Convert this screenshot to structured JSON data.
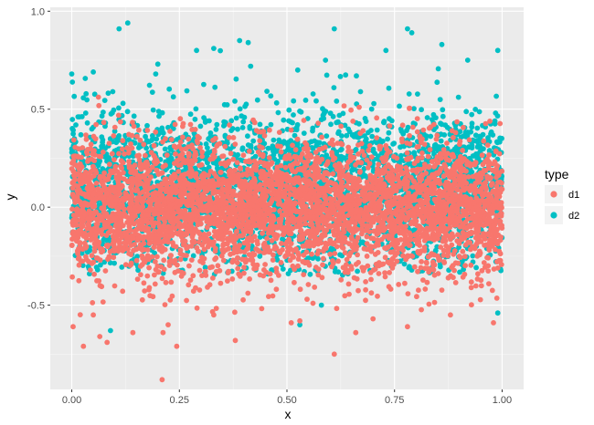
{
  "chart_data": {
    "type": "scatter",
    "title": "",
    "xlabel": "x",
    "ylabel": "y",
    "xlim": [
      -0.05,
      1.05
    ],
    "ylim": [
      -0.93,
      1.02
    ],
    "x_ticks": [
      0.0,
      0.25,
      0.5,
      0.75,
      1.0
    ],
    "x_tick_labels": [
      "0.00",
      "0.25",
      "0.50",
      "0.75",
      "1.00"
    ],
    "y_ticks": [
      -0.5,
      0.0,
      0.5,
      1.0
    ],
    "y_tick_labels": [
      "-0.5",
      "0.0",
      "0.5",
      "1.0"
    ],
    "grid": true,
    "background": "#ebebeb",
    "legend": {
      "title": "type",
      "placement": "right",
      "entries": [
        {
          "label": "d1",
          "color": "#F8766D"
        },
        {
          "label": "d2",
          "color": "#00BFC4"
        }
      ]
    },
    "series": [
      {
        "name": "d1",
        "color": "#F8766D",
        "x_range": [
          0.0,
          1.0
        ],
        "y_center": 0.0,
        "y_typical_range": [
          -0.3,
          0.4
        ],
        "points": [
          {
            "x": 0.003,
            "y": -0.61
          },
          {
            "x": 0.027,
            "y": -0.71
          },
          {
            "x": 0.065,
            "y": -0.66
          },
          {
            "x": 0.082,
            "y": -0.69
          },
          {
            "x": 0.142,
            "y": -0.64
          },
          {
            "x": 0.212,
            "y": -0.64
          },
          {
            "x": 0.224,
            "y": -0.6
          },
          {
            "x": 0.244,
            "y": -0.71
          },
          {
            "x": 0.21,
            "y": -0.88
          },
          {
            "x": 0.38,
            "y": -0.68
          },
          {
            "x": 0.51,
            "y": -0.59
          },
          {
            "x": 0.53,
            "y": -0.58
          },
          {
            "x": 0.61,
            "y": -0.75
          },
          {
            "x": 0.66,
            "y": -0.64
          },
          {
            "x": 0.78,
            "y": -0.61
          },
          {
            "x": 0.98,
            "y": -0.59
          },
          {
            "x": 0.88,
            "y": -0.55
          },
          {
            "x": 0.05,
            "y": -0.55
          },
          {
            "x": 0.33,
            "y": -0.55
          },
          {
            "x": 0.7,
            "y": -0.57
          }
        ]
      },
      {
        "name": "d2",
        "color": "#00BFC4",
        "x_range": [
          0.0,
          1.0
        ],
        "y_center": 0.1,
        "y_typical_range": [
          -0.2,
          0.75
        ],
        "points": [
          {
            "x": 0.11,
            "y": 0.91
          },
          {
            "x": 0.13,
            "y": 0.94
          },
          {
            "x": 0.29,
            "y": 0.8
          },
          {
            "x": 0.33,
            "y": 0.81
          },
          {
            "x": 0.39,
            "y": 0.85
          },
          {
            "x": 0.41,
            "y": 0.84
          },
          {
            "x": 0.61,
            "y": 0.91
          },
          {
            "x": 0.73,
            "y": 0.8
          },
          {
            "x": 0.78,
            "y": 0.91
          },
          {
            "x": 0.79,
            "y": 0.89
          },
          {
            "x": 0.86,
            "y": 0.83
          },
          {
            "x": 0.99,
            "y": 0.8
          },
          {
            "x": 0.05,
            "y": 0.69
          },
          {
            "x": 0.0,
            "y": 0.68
          },
          {
            "x": 0.2,
            "y": 0.73
          },
          {
            "x": 0.92,
            "y": 0.75
          },
          {
            "x": 0.53,
            "y": -0.6
          },
          {
            "x": 0.09,
            "y": -0.63
          },
          {
            "x": 0.58,
            "y": -0.5
          },
          {
            "x": 0.99,
            "y": -0.54
          }
        ]
      }
    ]
  }
}
